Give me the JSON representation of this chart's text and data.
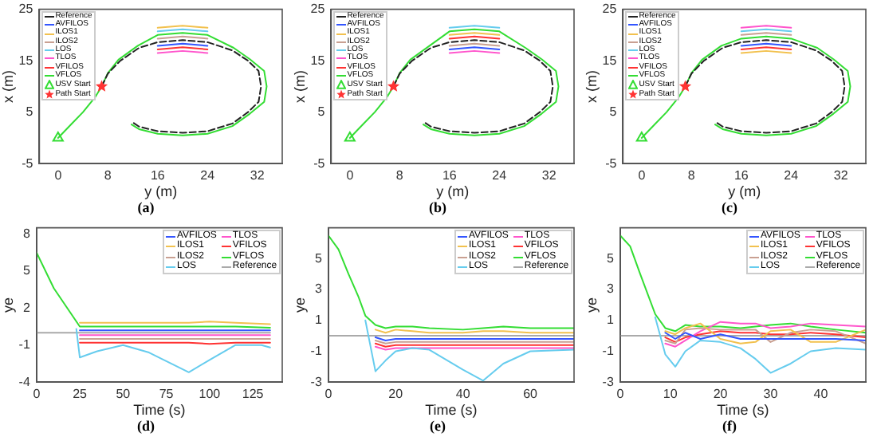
{
  "chart_data": [
    {
      "type": "line",
      "title": "(a)",
      "xlabel": "y (m)",
      "ylabel": "x (m)",
      "xlim": [
        -3,
        36
      ],
      "xticks": [
        0,
        8,
        16,
        24,
        32
      ],
      "ylim": [
        -5,
        25
      ],
      "yticks": [
        -5,
        5,
        15,
        25
      ],
      "legend": "top left",
      "grid": false,
      "series": [
        {
          "name": "Reference",
          "color": "#222222",
          "line_style": "dashed",
          "x": [
            7,
            8,
            10,
            13,
            16,
            20,
            24,
            28,
            30.5,
            32.2,
            32.6,
            32.2,
            30.5,
            28,
            24,
            20,
            16,
            13,
            12
          ],
          "values": [
            10,
            12.5,
            15,
            17.5,
            18.6,
            19,
            18.6,
            17,
            15,
            13,
            10,
            7,
            5,
            2.8,
            1.3,
            1,
            1.3,
            2.2,
            3
          ]
        },
        {
          "name": "AVFILOS",
          "color": "#3355ff",
          "x": [
            16,
            20,
            24
          ],
          "values": [
            17.9,
            18.3,
            17.9
          ]
        },
        {
          "name": "ILOS1",
          "color": "#f2c14e",
          "x": [
            16,
            20,
            24
          ],
          "values": [
            21.4,
            21.8,
            21.4
          ]
        },
        {
          "name": "ILOS2",
          "color": "#c9a092",
          "x": [
            16,
            20,
            24
          ],
          "values": [
            19.3,
            19.7,
            19.3
          ]
        },
        {
          "name": "LOS",
          "color": "#66ccee",
          "x": [
            16,
            20,
            24
          ],
          "values": [
            20.7,
            21.1,
            20.7
          ]
        },
        {
          "name": "TLOS",
          "color": "#ff55cc",
          "x": [
            16,
            20,
            24
          ],
          "values": [
            16.5,
            16.9,
            16.5
          ]
        },
        {
          "name": "VFILOS",
          "color": "#ff3333",
          "x": [
            16,
            20,
            24
          ],
          "values": [
            17.2,
            17.6,
            17.2
          ]
        },
        {
          "name": "VFLOS",
          "color": "#33dd33",
          "x": [
            0,
            2,
            4,
            6,
            7,
            8,
            9.7,
            12.8,
            16,
            20,
            24,
            28.2,
            30.8,
            33.1,
            33.5,
            33.1,
            30.8,
            28,
            24,
            20,
            16,
            13,
            11.8
          ],
          "values": [
            0,
            2.5,
            5,
            8,
            10,
            12.6,
            15.2,
            17.9,
            20,
            20.4,
            20,
            17.5,
            15.3,
            13,
            10,
            7,
            4.7,
            2.3,
            0.8,
            0.5,
            0.8,
            1.7,
            2.6
          ]
        },
        {
          "name": "USV Start",
          "type": "scatter",
          "marker": "triangle",
          "color": "#33dd33",
          "x": [
            0
          ],
          "values": [
            0
          ]
        },
        {
          "name": "Path Start",
          "type": "scatter",
          "marker": "star",
          "color": "#ff3333",
          "x": [
            7
          ],
          "values": [
            10
          ]
        }
      ]
    },
    {
      "type": "line",
      "title": "(b)",
      "xlabel": "y (m)",
      "ylabel": "x (m)",
      "xlim": [
        -3,
        36
      ],
      "xticks": [
        0,
        8,
        16,
        24,
        32
      ],
      "ylim": [
        -5,
        25
      ],
      "yticks": [
        -5,
        5,
        15,
        25
      ],
      "legend": "top left",
      "grid": false,
      "series": [
        {
          "name": "Reference",
          "color": "#222222",
          "line_style": "dashed",
          "x": [
            7,
            8,
            10,
            13,
            16,
            20,
            24,
            28,
            30.5,
            32.2,
            32.6,
            32.2,
            30.5,
            28,
            24,
            20,
            16,
            13,
            12
          ],
          "values": [
            10,
            12.5,
            15,
            17.5,
            18.6,
            19,
            18.6,
            17,
            15,
            13,
            10,
            7,
            5,
            2.8,
            1.3,
            1,
            1.3,
            2.2,
            3
          ]
        },
        {
          "name": "AVFILOS",
          "color": "#3355ff",
          "x": [
            16,
            20,
            24
          ],
          "values": [
            17.2,
            17.6,
            17.2
          ]
        },
        {
          "name": "ILOS1",
          "color": "#f2c14e",
          "x": [
            16,
            20,
            24
          ],
          "values": [
            20,
            20.4,
            20
          ]
        },
        {
          "name": "ILOS2",
          "color": "#c9a092",
          "x": [
            16,
            20,
            24
          ],
          "values": [
            17.9,
            18.3,
            17.9
          ]
        },
        {
          "name": "LOS",
          "color": "#66ccee",
          "x": [
            16,
            20,
            24
          ],
          "values": [
            21.4,
            21.8,
            21.4
          ]
        },
        {
          "name": "TLOS",
          "color": "#ff55cc",
          "x": [
            16,
            20,
            24
          ],
          "values": [
            16.5,
            16.9,
            16.5
          ]
        },
        {
          "name": "VFILOS",
          "color": "#ff3333",
          "x": [
            16,
            20,
            24
          ],
          "values": [
            19.3,
            19.7,
            19.3
          ]
        },
        {
          "name": "VFLOS",
          "color": "#33dd33",
          "x": [
            0,
            2,
            4,
            6,
            7,
            8,
            9.7,
            12.8,
            16,
            20,
            24,
            28.2,
            30.8,
            33.1,
            33.5,
            33.1,
            30.8,
            28,
            24,
            20,
            16,
            13,
            11.8
          ],
          "values": [
            0,
            2.5,
            5,
            8,
            10,
            12.6,
            15.2,
            17.9,
            20.7,
            21.1,
            20.7,
            17.5,
            15.3,
            13,
            10,
            7,
            4.7,
            2.3,
            0.8,
            0.5,
            0.8,
            1.7,
            2.6
          ]
        },
        {
          "name": "USV Start",
          "type": "scatter",
          "marker": "triangle",
          "color": "#33dd33",
          "x": [
            0
          ],
          "values": [
            0
          ]
        },
        {
          "name": "Path Start",
          "type": "scatter",
          "marker": "star",
          "color": "#ff3333",
          "x": [
            7
          ],
          "values": [
            10
          ]
        }
      ]
    },
    {
      "type": "line",
      "title": "(c)",
      "xlabel": "y (m)",
      "ylabel": "x (m)",
      "xlim": [
        -3,
        36
      ],
      "xticks": [
        0,
        8,
        16,
        24,
        32
      ],
      "ylim": [
        -5,
        25
      ],
      "yticks": [
        -5,
        5,
        15,
        25
      ],
      "legend": "top left",
      "grid": false,
      "series": [
        {
          "name": "Reference",
          "color": "#222222",
          "line_style": "dashed",
          "x": [
            7,
            8,
            10,
            13,
            16,
            20,
            24,
            28,
            30.5,
            32.2,
            32.6,
            32.2,
            30.5,
            28,
            24,
            20,
            16,
            13,
            12
          ],
          "values": [
            10,
            12.5,
            15,
            17.5,
            18.6,
            19,
            18.6,
            17,
            15,
            13,
            10,
            7,
            5,
            2.8,
            1.3,
            1,
            1.3,
            2.2,
            3
          ]
        },
        {
          "name": "AVFILOS",
          "color": "#3355ff",
          "x": [
            16,
            20,
            24
          ],
          "values": [
            17.9,
            18.3,
            17.9
          ]
        },
        {
          "name": "ILOS1",
          "color": "#f2c14e",
          "x": [
            16,
            20,
            24
          ],
          "values": [
            16.5,
            16.9,
            16.5
          ]
        },
        {
          "name": "ILOS2",
          "color": "#c9a092",
          "x": [
            16,
            20,
            24
          ],
          "values": [
            20,
            20.4,
            20
          ]
        },
        {
          "name": "LOS",
          "color": "#66ccee",
          "x": [
            16,
            20,
            24
          ],
          "values": [
            20.7,
            21.1,
            20.7
          ]
        },
        {
          "name": "TLOS",
          "color": "#ff55cc",
          "x": [
            16,
            20,
            24
          ],
          "values": [
            21.4,
            21.8,
            21.4
          ]
        },
        {
          "name": "VFILOS",
          "color": "#ff3333",
          "x": [
            16,
            20,
            24
          ],
          "values": [
            17.2,
            17.6,
            17.2
          ]
        },
        {
          "name": "VFLOS",
          "color": "#33dd33",
          "x": [
            0,
            2,
            4,
            6,
            7,
            8,
            9.7,
            12.8,
            16,
            20,
            24,
            28.2,
            30.8,
            33.1,
            33.5,
            33.1,
            30.8,
            28,
            24,
            20,
            16,
            13,
            11.8
          ],
          "values": [
            0,
            2.5,
            5,
            8,
            10,
            12.6,
            15.2,
            17.9,
            19.3,
            19.7,
            19.3,
            17.5,
            15.3,
            13,
            10,
            7,
            4.7,
            2.3,
            0.8,
            0.5,
            0.8,
            1.7,
            2.6
          ]
        },
        {
          "name": "USV Start",
          "type": "scatter",
          "marker": "triangle",
          "color": "#33dd33",
          "x": [
            0
          ],
          "values": [
            0
          ]
        },
        {
          "name": "Path Start",
          "type": "scatter",
          "marker": "star",
          "color": "#ff3333",
          "x": [
            7
          ],
          "values": [
            10
          ]
        }
      ]
    },
    {
      "type": "line",
      "title": "(d)",
      "xlabel": "Time (s)",
      "ylabel": "ye",
      "xlim": [
        0,
        142
      ],
      "xticks": [
        0,
        25,
        50,
        75,
        100,
        125
      ],
      "ylim": [
        -4,
        8.5
      ],
      "yticks": [
        -4,
        -1,
        2,
        5,
        8
      ],
      "legend": "top right",
      "grid": false,
      "x": [
        0,
        10,
        25,
        35,
        50,
        65,
        88,
        100,
        115,
        135
      ],
      "series": [
        {
          "name": "AVFILOS",
          "color": "#3355ff",
          "values": [
            null,
            null,
            0.2,
            0.2,
            0.2,
            0.2,
            0.2,
            0.2,
            0.2,
            0.2
          ]
        },
        {
          "name": "ILOS1",
          "color": "#f2c14e",
          "values": [
            null,
            null,
            0.8,
            0.8,
            0.8,
            0.8,
            0.8,
            0.9,
            0.8,
            0.7
          ]
        },
        {
          "name": "ILOS2",
          "color": "#c9a092",
          "values": [
            null,
            null,
            -0.5,
            -0.5,
            -0.5,
            -0.5,
            -0.5,
            -0.5,
            -0.5,
            -0.5
          ]
        },
        {
          "name": "LOS",
          "color": "#66ccee",
          "x": [
            23,
            25,
            35,
            50,
            65,
            88,
            100,
            115,
            130,
            135
          ],
          "values": [
            0.3,
            -2,
            -1.5,
            -1,
            -1.6,
            -3.2,
            -2.2,
            -1,
            -1,
            -1.2
          ]
        },
        {
          "name": "TLOS",
          "color": "#ff55cc",
          "values": [
            null,
            null,
            -0.2,
            -0.2,
            -0.2,
            -0.2,
            -0.2,
            -0.2,
            -0.2,
            -0.2
          ]
        },
        {
          "name": "VFILOS",
          "color": "#ff3333",
          "values": [
            null,
            null,
            -0.8,
            -0.8,
            -0.8,
            -0.8,
            -0.8,
            -0.9,
            -0.8,
            -0.8
          ]
        },
        {
          "name": "VFLOS",
          "color": "#33dd33",
          "values": [
            6.5,
            3.6,
            0.5,
            0.5,
            0.5,
            0.5,
            0.5,
            0.5,
            0.5,
            0.4
          ]
        },
        {
          "name": "Reference",
          "color": "#aaaaaa",
          "values": [
            0,
            0,
            0,
            0,
            0,
            0,
            0,
            0,
            0,
            0
          ]
        }
      ]
    },
    {
      "type": "line",
      "title": "(e)",
      "xlabel": "Time (s)",
      "ylabel": "ye",
      "xlim": [
        0,
        73
      ],
      "xticks": [
        0,
        20,
        40,
        60
      ],
      "ylim": [
        -3,
        7
      ],
      "yticks": [
        -3,
        -1,
        1,
        3,
        5
      ],
      "legend": "top right",
      "grid": false,
      "x": [
        0,
        3,
        6,
        9,
        11,
        14,
        17,
        20,
        25,
        30,
        40,
        46,
        52,
        60,
        73
      ],
      "series": [
        {
          "name": "AVFILOS",
          "color": "#3355ff",
          "values": [
            null,
            null,
            null,
            null,
            null,
            -0.1,
            -0.3,
            -0.2,
            -0.2,
            -0.2,
            -0.2,
            -0.2,
            -0.2,
            -0.2,
            -0.2
          ]
        },
        {
          "name": "ILOS1",
          "color": "#f2c14e",
          "values": [
            null,
            null,
            null,
            null,
            null,
            0.4,
            0.2,
            0.4,
            0.3,
            0.2,
            0.2,
            0.3,
            0.3,
            0.2,
            0.2
          ]
        },
        {
          "name": "ILOS2",
          "color": "#c9a092",
          "values": [
            null,
            null,
            null,
            null,
            null,
            -0.3,
            -0.5,
            -0.4,
            -0.4,
            -0.4,
            -0.4,
            -0.4,
            -0.4,
            -0.4,
            -0.4
          ]
        },
        {
          "name": "LOS",
          "color": "#66ccee",
          "values": [
            null,
            null,
            null,
            null,
            1,
            -2.3,
            -1.6,
            -1,
            -0.8,
            -0.9,
            -2.2,
            -2.9,
            -1.8,
            -1,
            -0.9
          ]
        },
        {
          "name": "TLOS",
          "color": "#ff55cc",
          "values": [
            null,
            null,
            null,
            null,
            null,
            -0.7,
            -0.9,
            -0.8,
            -0.8,
            -0.8,
            -0.8,
            -0.8,
            -0.8,
            -0.8,
            -0.8
          ]
        },
        {
          "name": "VFILOS",
          "color": "#ff3333",
          "values": [
            null,
            null,
            null,
            null,
            null,
            -0.5,
            -0.7,
            -0.6,
            -0.6,
            -0.6,
            -0.6,
            -0.6,
            -0.6,
            -0.6,
            -0.6
          ]
        },
        {
          "name": "VFLOS",
          "color": "#33dd33",
          "values": [
            6.5,
            5.6,
            4,
            2.5,
            1.3,
            0.7,
            0.5,
            0.6,
            0.6,
            0.5,
            0.4,
            0.5,
            0.6,
            0.5,
            0.5
          ]
        },
        {
          "name": "Reference",
          "color": "#aaaaaa",
          "values": [
            0,
            0,
            0,
            0,
            0,
            0,
            0,
            0,
            0,
            0,
            0,
            0,
            0,
            0,
            0
          ]
        }
      ]
    },
    {
      "type": "line",
      "title": "(f)",
      "xlabel": "Time (s)",
      "ylabel": "ye",
      "xlim": [
        0,
        49
      ],
      "xticks": [
        0,
        10,
        20,
        30,
        40
      ],
      "ylim": [
        -3,
        7
      ],
      "yticks": [
        -3,
        -1,
        1,
        3,
        5
      ],
      "legend": "top right",
      "grid": false,
      "x": [
        0,
        2,
        4,
        7,
        9,
        11,
        13,
        16,
        20,
        24,
        27,
        30,
        34,
        38,
        43,
        49
      ],
      "series": [
        {
          "name": "AVFILOS",
          "color": "#3355ff",
          "values": [
            null,
            null,
            null,
            null,
            0.2,
            -0.2,
            0.2,
            -0.2,
            0.1,
            -0.2,
            -0.2,
            -0.2,
            -0.2,
            -0.2,
            -0.2,
            -0.3
          ]
        },
        {
          "name": "ILOS1",
          "color": "#f2c14e",
          "values": [
            null,
            null,
            null,
            null,
            0.3,
            0.1,
            0.5,
            0.8,
            -0.2,
            -0.5,
            -0.4,
            0.3,
            0.4,
            -0.4,
            -0.4,
            0.4
          ]
        },
        {
          "name": "ILOS2",
          "color": "#c9a092",
          "values": [
            null,
            null,
            null,
            null,
            -0.3,
            -0.5,
            0.4,
            0.5,
            0.4,
            0.4,
            0.4,
            -0.4,
            0.2,
            0.4,
            0.3,
            -0.5
          ]
        },
        {
          "name": "LOS",
          "color": "#66ccee",
          "values": [
            null,
            null,
            null,
            1.2,
            -1.2,
            -2,
            -1,
            -0.3,
            -0.4,
            -0.8,
            -1.5,
            -2.4,
            -1.8,
            -1,
            -0.8,
            -0.9
          ]
        },
        {
          "name": "TLOS",
          "color": "#ff55cc",
          "values": [
            null,
            null,
            null,
            null,
            -0.5,
            -0.7,
            -0.3,
            0.3,
            0.9,
            0.8,
            0.8,
            0.5,
            0.6,
            0.8,
            0.7,
            0.6
          ]
        },
        {
          "name": "VFILOS",
          "color": "#ff3333",
          "values": [
            null,
            null,
            null,
            null,
            -0.1,
            -0.4,
            -0.1,
            0.1,
            0.3,
            0.2,
            0.2,
            0.1,
            0.1,
            0.2,
            0.1,
            -0.1
          ]
        },
        {
          "name": "VFLOS",
          "color": "#33dd33",
          "values": [
            6.5,
            5.8,
            4,
            1.4,
            0.5,
            0.3,
            0.7,
            0.6,
            0.6,
            0.5,
            0.6,
            0.7,
            0.8,
            0.6,
            0.4,
            0.2
          ]
        },
        {
          "name": "Reference",
          "color": "#aaaaaa",
          "values": [
            0,
            0,
            0,
            0,
            0,
            0,
            0,
            0,
            0,
            0,
            0,
            0,
            0,
            0,
            0,
            0
          ]
        }
      ]
    }
  ]
}
